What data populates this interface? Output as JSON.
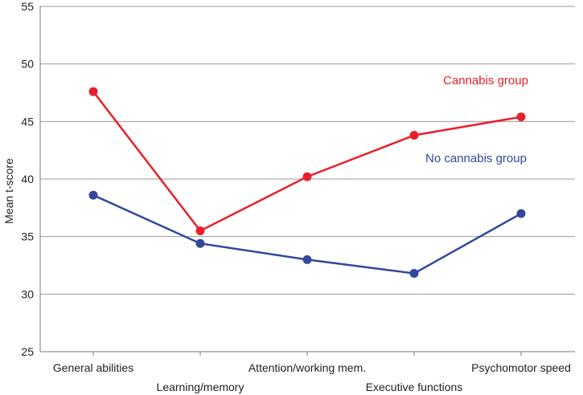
{
  "chart_data": {
    "type": "line",
    "title": "",
    "xlabel": "",
    "ylabel": "Mean t-score",
    "ylim": [
      25,
      55
    ],
    "yticks": [
      25,
      30,
      35,
      40,
      45,
      50,
      55
    ],
    "grid": true,
    "categories": [
      "General abilities",
      "Learning/memory",
      "Attention/working mem.",
      "Executive functions",
      "Psychomotor speed"
    ],
    "series": [
      {
        "name": "Cannabis group",
        "color": "#e8202a",
        "values": [
          47.6,
          35.5,
          40.2,
          43.8,
          45.4
        ]
      },
      {
        "name": "No cannabis group",
        "color": "#33479b",
        "values": [
          38.6,
          34.4,
          33.0,
          31.8,
          37.0
        ]
      }
    ]
  }
}
